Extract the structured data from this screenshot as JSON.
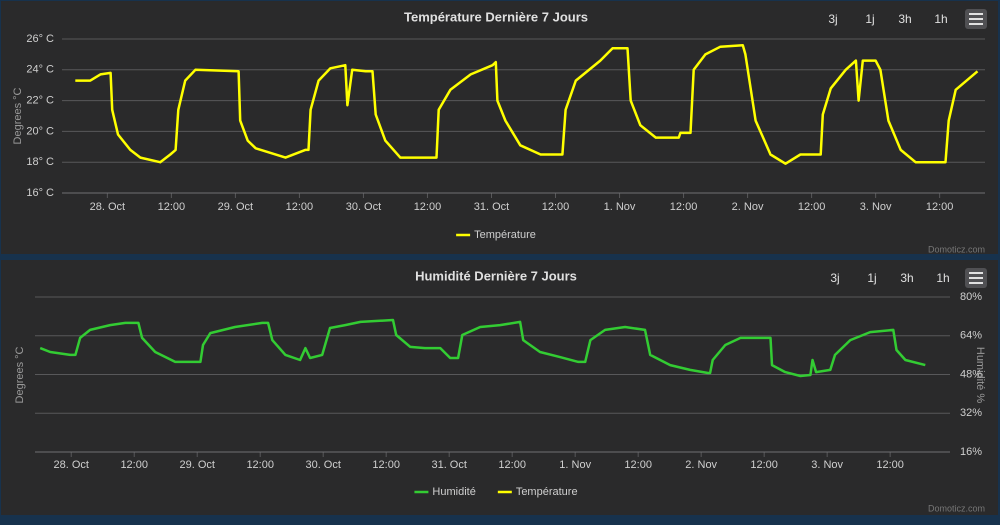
{
  "chart_data": [
    {
      "type": "line",
      "title": "Température Dernière 7 Jours",
      "ylabel": "Degrees °C",
      "buttons": [
        "3j",
        "1j",
        "3h",
        "1h"
      ],
      "credit": "Domoticz.com",
      "xlim": [
        -8.5,
        164.5
      ],
      "xticks": [
        {
          "value": 0,
          "label": "28. Oct"
        },
        {
          "value": 12,
          "label": "12:00"
        },
        {
          "value": 24,
          "label": "29. Oct"
        },
        {
          "value": 36,
          "label": "12:00"
        },
        {
          "value": 48,
          "label": "30. Oct"
        },
        {
          "value": 60,
          "label": "12:00"
        },
        {
          "value": 72,
          "label": "31. Oct"
        },
        {
          "value": 84,
          "label": "12:00"
        },
        {
          "value": 96,
          "label": "1. Nov"
        },
        {
          "value": 108,
          "label": "12:00"
        },
        {
          "value": 120,
          "label": "2. Nov"
        },
        {
          "value": 132,
          "label": "12:00"
        },
        {
          "value": 144,
          "label": "3. Nov"
        },
        {
          "value": 156,
          "label": "12:00"
        }
      ],
      "ylim": [
        16,
        26
      ],
      "yticks": [
        {
          "value": 16,
          "label": "16° C"
        },
        {
          "value": 18,
          "label": "18° C"
        },
        {
          "value": 20,
          "label": "20° C"
        },
        {
          "value": 22,
          "label": "22° C"
        },
        {
          "value": 24,
          "label": "24° C"
        },
        {
          "value": 26,
          "label": "26° C"
        }
      ],
      "grid": true,
      "series": [
        {
          "name": "Température",
          "color": "#ffff00",
          "x": [
            -6,
            -3.2,
            -1.3,
            0.6,
            0.9,
            2,
            4.3,
            6.2,
            9.9,
            11.8,
            12.8,
            13.3,
            14.6,
            16.5,
            24.6,
            24.9,
            26.3,
            27.8,
            33.4,
            37.1,
            37.7,
            38.1,
            39.6,
            41.8,
            44.6,
            45,
            45.9,
            48.4,
            49.7,
            50.3,
            52.1,
            54.9,
            56.8,
            61.7,
            62.1,
            64.3,
            68.1,
            72.2,
            72.8,
            73.1,
            74.6,
            77.4,
            81.2,
            85.3,
            85.9,
            87.8,
            92.4,
            94.7,
            97.5,
            98.1,
            99.9,
            102.8,
            107.1,
            107.4,
            109.3,
            109.9,
            112.1,
            114.9,
            119.1,
            119.6,
            121.5,
            124.3,
            127.1,
            129.9,
            133.7,
            134.1,
            135.6,
            138.4,
            140.3,
            140.8,
            141.6,
            144,
            144.9,
            146.4,
            148.7,
            151.5,
            157.1,
            157.7,
            159,
            163.1
          ],
          "values": [
            23.3,
            23.3,
            23.7,
            23.8,
            21.4,
            19.8,
            18.8,
            18.3,
            18.0,
            18.5,
            18.8,
            21.4,
            23.3,
            24.0,
            23.9,
            20.7,
            19.4,
            18.9,
            18.3,
            18.8,
            18.8,
            21.4,
            23.3,
            24.1,
            24.3,
            21.7,
            24.0,
            23.9,
            23.9,
            21.1,
            19.4,
            18.3,
            18.3,
            18.3,
            21.4,
            22.7,
            23.7,
            24.3,
            24.5,
            22.0,
            20.7,
            19.1,
            18.5,
            18.5,
            21.4,
            23.3,
            24.6,
            25.4,
            25.4,
            22.0,
            20.4,
            19.6,
            19.6,
            19.9,
            19.9,
            24.0,
            25.0,
            25.5,
            25.6,
            25.0,
            20.7,
            18.5,
            17.9,
            18.5,
            18.5,
            21.1,
            22.8,
            24.0,
            24.6,
            22.0,
            24.6,
            24.6,
            24.0,
            20.7,
            18.8,
            18.0,
            18.0,
            20.7,
            22.7,
            23.9
          ]
        }
      ]
    },
    {
      "type": "line",
      "title": "Humidité Dernière 7 Jours",
      "ylabel": "Degrees °C",
      "y2label": "Humidité %",
      "buttons": [
        "3j",
        "1j",
        "3h",
        "1h"
      ],
      "credit": "Domoticz.com",
      "xlim": [
        -6.9,
        167.4
      ],
      "xticks": [
        {
          "value": 0,
          "label": "28. Oct"
        },
        {
          "value": 12,
          "label": "12:00"
        },
        {
          "value": 24,
          "label": "29. Oct"
        },
        {
          "value": 36,
          "label": "12:00"
        },
        {
          "value": 48,
          "label": "30. Oct"
        },
        {
          "value": 60,
          "label": "12:00"
        },
        {
          "value": 72,
          "label": "31. Oct"
        },
        {
          "value": 84,
          "label": "12:00"
        },
        {
          "value": 96,
          "label": "1. Nov"
        },
        {
          "value": 108,
          "label": "12:00"
        },
        {
          "value": 120,
          "label": "2. Nov"
        },
        {
          "value": 132,
          "label": "12:00"
        },
        {
          "value": 144,
          "label": "3. Nov"
        },
        {
          "value": 156,
          "label": "12:00"
        }
      ],
      "y2lim": [
        16,
        80
      ],
      "y2ticks": [
        {
          "value": 16,
          "label": "16%"
        },
        {
          "value": 32,
          "label": "32%"
        },
        {
          "value": 48,
          "label": "48%"
        },
        {
          "value": 64,
          "label": "64%"
        },
        {
          "value": 80,
          "label": "80%"
        }
      ],
      "grid": true,
      "series": [
        {
          "name": "Humidité",
          "color": "#33cc33",
          "axis": "y2",
          "x": [
            -5.9,
            -4,
            -0.2,
            0.8,
            1.7,
            3.6,
            7.4,
            10.3,
            12.8,
            13.5,
            16,
            19.8,
            24.6,
            25.1,
            26.5,
            31.2,
            36.4,
            37.5,
            38.3,
            40.8,
            43.6,
            44.6,
            45.5,
            47.8,
            49.3,
            52.2,
            55.1,
            61.3,
            61.9,
            64.6,
            67.4,
            70.3,
            72.2,
            73.7,
            74.5,
            77.9,
            81.7,
            85.5,
            86.1,
            89.3,
            93.1,
            96.6,
            97.9,
            98.9,
            101.7,
            105.5,
            109.3,
            110.3,
            114.1,
            117.9,
            121.3,
            121.7,
            122.2,
            124.6,
            127.5,
            133.2,
            133.5,
            136,
            138.9,
            140.8,
            141.2,
            141.9,
            144.6,
            145.5,
            148.4,
            152.2,
            156.6,
            157.2,
            158.9,
            162.7
          ],
          "values": [
            58.9,
            57.3,
            56.1,
            56.1,
            63.1,
            66.4,
            68.4,
            69.3,
            69.3,
            63.1,
            57.3,
            53.2,
            53.2,
            60.2,
            65.1,
            67.6,
            69.3,
            69.3,
            62.2,
            56.1,
            54.0,
            58.9,
            54.8,
            56.1,
            67.2,
            68.4,
            69.7,
            70.5,
            64.3,
            59.4,
            58.9,
            58.9,
            54.8,
            54.8,
            64.3,
            67.6,
            68.4,
            69.7,
            62.2,
            57.3,
            55.2,
            53.2,
            53.2,
            62.2,
            66.4,
            67.6,
            66.4,
            56.1,
            51.9,
            49.9,
            48.6,
            48.6,
            54.0,
            60.2,
            63.1,
            63.1,
            51.9,
            49.0,
            47.4,
            47.8,
            54.0,
            49.0,
            49.9,
            56.1,
            62.2,
            65.5,
            66.4,
            58.1,
            54.0,
            51.9
          ]
        },
        {
          "name": "Température",
          "color": "#ffff00",
          "x": [],
          "values": []
        }
      ]
    }
  ]
}
